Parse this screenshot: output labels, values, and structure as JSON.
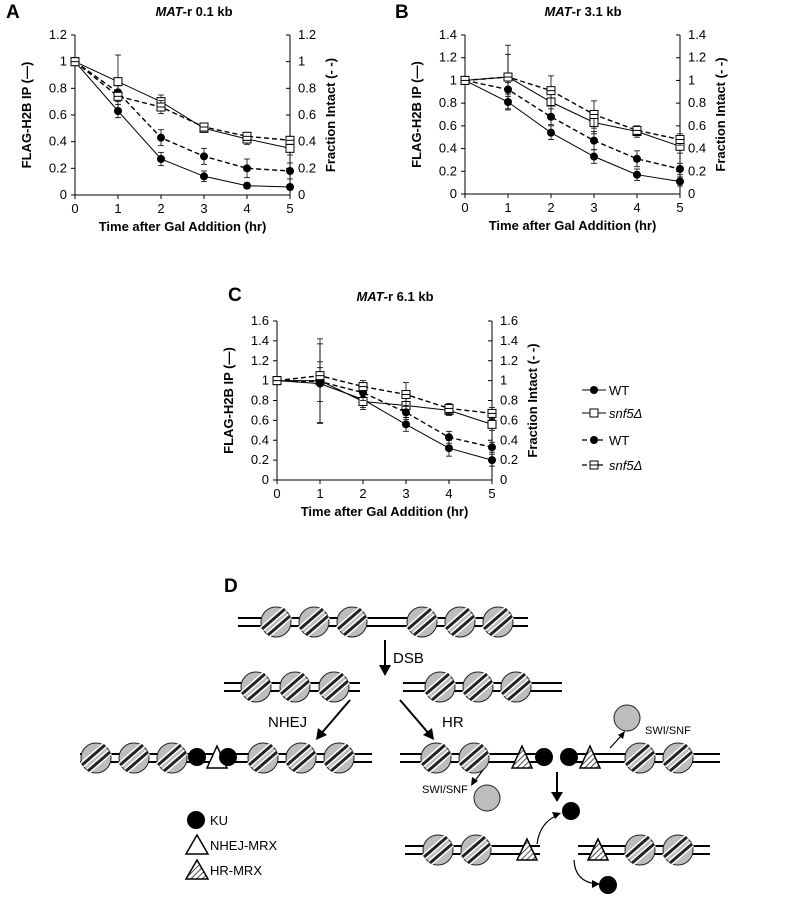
{
  "panels": {
    "A": {
      "letter": "A",
      "title_italic": "MAT",
      "title_rest": "-r 0.1 kb"
    },
    "B": {
      "letter": "B",
      "title_italic": "MAT",
      "title_rest": "-r 3.1 kb"
    },
    "C": {
      "letter": "C",
      "title_italic": "MAT",
      "title_rest": "-r 6.1 kb"
    },
    "D": {
      "letter": "D"
    }
  },
  "axes": {
    "xlabel": "Time after Gal Addition (hr)",
    "ylabel_left": "FLAG-H2B IP (—)",
    "ylabel_right": "Fraction Intact (- -)"
  },
  "legend": {
    "items": [
      {
        "label": "WT",
        "italic": false,
        "marker": "filled-circle",
        "dash": false
      },
      {
        "label": "snf5Δ",
        "italic": true,
        "marker": "open-square",
        "dash": false
      },
      {
        "label": "WT",
        "italic": false,
        "marker": "filled-circle",
        "dash": true
      },
      {
        "label": "snf5Δ",
        "italic": true,
        "marker": "open-square",
        "dash": true
      }
    ]
  },
  "chart_data": [
    {
      "type": "line",
      "panel": "A",
      "title": "MAT-r 0.1 kb",
      "xlabel": "Time after Gal Addition (hr)",
      "ylabel": "FLAG-H2B IP (—)",
      "y2label": "Fraction Intact (- -)",
      "x": [
        0,
        1,
        2,
        3,
        4,
        5
      ],
      "xlim": [
        0,
        5
      ],
      "ylim": [
        0,
        1.2
      ],
      "yticks": [
        "0",
        "0.2",
        "0.4",
        "0.6",
        "0.8",
        "1",
        "1.2"
      ],
      "series": [
        {
          "name": "WT",
          "style": "solid",
          "marker": "filled-circle",
          "values": [
            1,
            0.63,
            0.27,
            0.14,
            0.07,
            0.06
          ],
          "err": [
            0,
            0.05,
            0.05,
            0.04,
            0.02,
            0.02
          ]
        },
        {
          "name": "snf5Δ",
          "style": "solid",
          "marker": "open-square",
          "values": [
            1,
            0.85,
            0.7,
            0.5,
            0.42,
            0.35
          ],
          "err": [
            0,
            0.2,
            0.05,
            0.03,
            0.04,
            0.05
          ]
        },
        {
          "name": "WT",
          "style": "dashed",
          "marker": "filled-circle",
          "values": [
            1,
            0.77,
            0.43,
            0.29,
            0.2,
            0.18
          ],
          "err": [
            0,
            0.05,
            0.06,
            0.06,
            0.07,
            0.06
          ]
        },
        {
          "name": "snf5Δ",
          "style": "dashed",
          "marker": "open-square",
          "values": [
            1,
            0.74,
            0.66,
            0.51,
            0.44,
            0.41
          ],
          "err": [
            0,
            0.04,
            0.05,
            0.03,
            0.03,
            0.03
          ]
        }
      ]
    },
    {
      "type": "line",
      "panel": "B",
      "title": "MAT-r 3.1 kb",
      "xlabel": "Time after Gal Addition (hr)",
      "ylabel": "FLAG-H2B IP (—)",
      "y2label": "Fraction Intact (- -)",
      "x": [
        0,
        1,
        2,
        3,
        4,
        5
      ],
      "xlim": [
        0,
        5
      ],
      "ylim": [
        0,
        1.4
      ],
      "yticks": [
        "0",
        "0.2",
        "0.4",
        "0.6",
        "0.8",
        "1",
        "1.2",
        "1.4"
      ],
      "series": [
        {
          "name": "WT",
          "style": "solid",
          "marker": "filled-circle",
          "values": [
            1,
            0.81,
            0.54,
            0.33,
            0.17,
            0.11
          ],
          "err": [
            0,
            0.07,
            0.06,
            0.06,
            0.05,
            0.04
          ]
        },
        {
          "name": "snf5Δ",
          "style": "solid",
          "marker": "open-square",
          "values": [
            1,
            1.03,
            0.81,
            0.63,
            0.55,
            0.42
          ],
          "err": [
            0,
            0.28,
            0.12,
            0.1,
            0.05,
            0.06
          ]
        },
        {
          "name": "WT",
          "style": "dashed",
          "marker": "filled-circle",
          "values": [
            1,
            0.92,
            0.68,
            0.47,
            0.31,
            0.22
          ],
          "err": [
            0,
            0.06,
            0.07,
            0.08,
            0.07,
            0.05
          ]
        },
        {
          "name": "snf5Δ",
          "style": "dashed",
          "marker": "open-square",
          "values": [
            1,
            1.03,
            0.91,
            0.7,
            0.56,
            0.48
          ],
          "err": [
            0,
            0.2,
            0.13,
            0.12,
            0.04,
            0.05
          ]
        }
      ]
    },
    {
      "type": "line",
      "panel": "C",
      "title": "MAT-r 6.1 kb",
      "xlabel": "Time after Gal Addition (hr)",
      "ylabel": "FLAG-H2B IP (—)",
      "y2label": "Fraction Intact (- -)",
      "x": [
        0,
        1,
        2,
        3,
        4,
        5
      ],
      "xlim": [
        0,
        5
      ],
      "ylim": [
        0,
        1.6
      ],
      "yticks": [
        "0",
        "0.2",
        "0.4",
        "0.6",
        "0.8",
        "1",
        "1.2",
        "1.4",
        "1.6"
      ],
      "series": [
        {
          "name": "WT",
          "style": "solid",
          "marker": "filled-circle",
          "values": [
            1,
            0.97,
            0.81,
            0.56,
            0.32,
            0.2
          ],
          "err": [
            0,
            0.4,
            0.08,
            0.07,
            0.08,
            0.06
          ]
        },
        {
          "name": "snf5Δ",
          "style": "solid",
          "marker": "open-square",
          "values": [
            1,
            1.0,
            0.79,
            0.75,
            0.7,
            0.56
          ],
          "err": [
            0,
            0.42,
            0.08,
            0.12,
            0.05,
            0.06
          ]
        },
        {
          "name": "WT",
          "style": "dashed",
          "marker": "filled-circle",
          "values": [
            1,
            0.99,
            0.88,
            0.68,
            0.43,
            0.33
          ],
          "err": [
            0,
            0.2,
            0.08,
            0.07,
            0.06,
            0.05
          ]
        },
        {
          "name": "snf5Δ",
          "style": "dashed",
          "marker": "open-square",
          "values": [
            1,
            1.05,
            0.94,
            0.86,
            0.72,
            0.67
          ],
          "err": [
            0,
            0.08,
            0.06,
            0.12,
            0.05,
            0.06
          ]
        }
      ]
    }
  ],
  "diagram": {
    "dsb_label": "DSB",
    "nhej_label": "NHEJ",
    "hr_label": "HR",
    "swisnf_label": "SWI/SNF",
    "key": [
      {
        "label": "KU",
        "symbol": "filled-circle"
      },
      {
        "label": "NHEJ-MRX",
        "symbol": "open-triangle"
      },
      {
        "label": "HR-MRX",
        "symbol": "hatched-triangle"
      }
    ]
  }
}
